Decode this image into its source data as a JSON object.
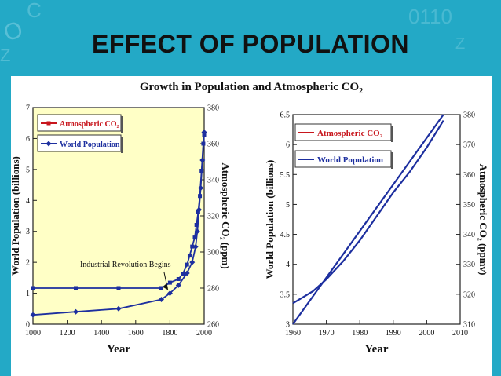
{
  "slide": {
    "title": "EFFECT OF POPULATION"
  },
  "figure": {
    "title": "Growth in Population and Atmospheric CO",
    "title_sub": "2"
  },
  "colors": {
    "co2": "#c8161d",
    "population": "#1d2f9f",
    "left_bg": "#ffffc6",
    "slide_bg": "#23a9c6"
  },
  "chart_data": [
    {
      "type": "line",
      "name": "left",
      "xlabel": "Year",
      "ylabel": "World Population (billions)",
      "ylabel2": "Atmospheric CO₂ (ppm)",
      "xlim": [
        1000,
        2000
      ],
      "ylim": [
        0,
        7
      ],
      "y2lim": [
        260,
        380
      ],
      "xticks": [
        1000,
        1200,
        1400,
        1600,
        1800,
        2000
      ],
      "yticks": [
        0,
        1,
        2,
        3,
        4,
        5,
        6,
        7
      ],
      "y2ticks": [
        260,
        280,
        300,
        320,
        340,
        360,
        380
      ],
      "legend": [
        "Atmospheric CO₂",
        "World Population"
      ],
      "annotation": "Industrial Revolution Begins",
      "annotation_target": [
        1800,
        1.0
      ],
      "series": [
        {
          "name": "Atmospheric CO₂",
          "axis": "right",
          "marker": "square",
          "x": [
            1000,
            1250,
            1500,
            1750,
            1800,
            1850,
            1875,
            1900,
            1915,
            1930,
            1945,
            1955,
            1965,
            1975,
            1985,
            1995,
            2000
          ],
          "y": [
            280,
            280,
            280,
            280,
            283,
            285,
            288,
            293,
            298,
            303,
            308,
            315,
            322,
            331,
            345,
            360,
            365
          ]
        },
        {
          "name": "World Population",
          "axis": "left",
          "marker": "diamond",
          "x": [
            1000,
            1250,
            1500,
            1750,
            1800,
            1850,
            1900,
            1930,
            1950,
            1960,
            1970,
            1980,
            1990,
            2000
          ],
          "y": [
            0.3,
            0.4,
            0.5,
            0.8,
            1.0,
            1.26,
            1.65,
            2.0,
            2.5,
            3.0,
            3.7,
            4.4,
            5.3,
            6.2
          ]
        }
      ]
    },
    {
      "type": "line",
      "name": "right",
      "xlabel": "Year",
      "ylabel": "World Population (billions)",
      "ylabel2": "Atmospheric CO₂ (ppmv)",
      "xlim": [
        1960,
        2010
      ],
      "ylim": [
        3,
        6.5
      ],
      "y2lim": [
        310,
        380
      ],
      "xticks": [
        1960,
        1970,
        1980,
        1990,
        2000,
        2010
      ],
      "yticks": [
        3,
        3.5,
        4,
        4.5,
        5,
        5.5,
        6,
        6.5
      ],
      "y2ticks": [
        310,
        320,
        330,
        340,
        350,
        360,
        370,
        380
      ],
      "legend": [
        "Atmospheric CO₂",
        "World Population"
      ],
      "series": [
        {
          "name": "Atmospheric CO₂",
          "axis": "right",
          "x": [
            1960,
            1963,
            1966,
            1970,
            1975,
            1980,
            1985,
            1990,
            1995,
            2000,
            2005
          ],
          "y": [
            317,
            319,
            321,
            325,
            331,
            338,
            346,
            354,
            361,
            369,
            378
          ]
        },
        {
          "name": "World Population",
          "axis": "left",
          "x": [
            1960,
            2005
          ],
          "y": [
            3.0,
            6.5
          ]
        }
      ]
    }
  ]
}
